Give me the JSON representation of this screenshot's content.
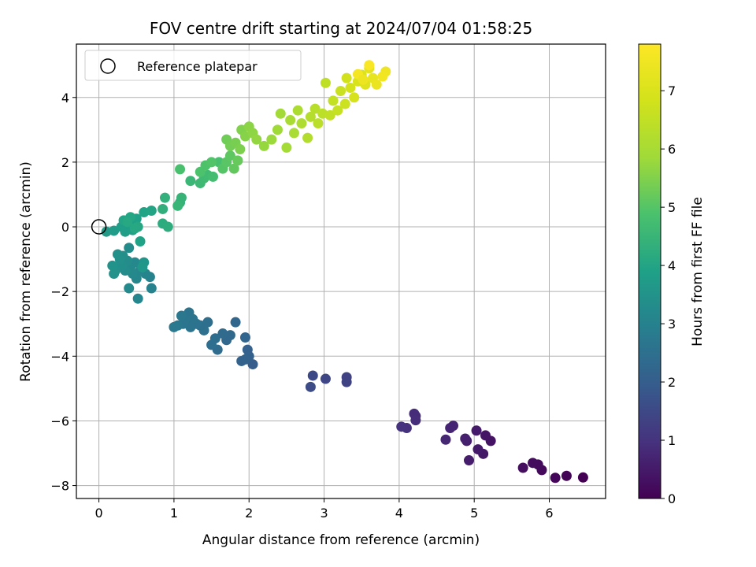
{
  "chart_data": {
    "type": "scatter",
    "title": "FOV centre drift starting at 2024/07/04 01:58:25",
    "xlabel": "Angular distance from reference (arcmin)",
    "ylabel": "Rotation from reference (arcmin)",
    "xlim": [
      -0.3,
      6.75
    ],
    "ylim": [
      -8.4,
      5.65
    ],
    "xticks": [
      0,
      1,
      2,
      3,
      4,
      5,
      6
    ],
    "yticks": [
      -8,
      -6,
      -4,
      -2,
      0,
      2,
      4
    ],
    "grid": true,
    "colormap": "viridis",
    "colorbar": {
      "label": "Hours from first FF file",
      "range": [
        0,
        7.8
      ],
      "ticks": [
        0,
        1,
        2,
        3,
        4,
        5,
        6,
        7
      ]
    },
    "legend": {
      "placement": "top-left",
      "entries": [
        {
          "label": "Reference platepar",
          "marker": "open-circle",
          "x": 0,
          "y": 0
        }
      ]
    },
    "points": [
      {
        "x": 6.45,
        "y": -7.75,
        "c": 0.0
      },
      {
        "x": 6.23,
        "y": -7.7,
        "c": 0.05
      },
      {
        "x": 6.08,
        "y": -7.76,
        "c": 0.1
      },
      {
        "x": 5.9,
        "y": -7.52,
        "c": 0.15
      },
      {
        "x": 5.85,
        "y": -7.35,
        "c": 0.2
      },
      {
        "x": 5.78,
        "y": -7.3,
        "c": 0.22
      },
      {
        "x": 5.65,
        "y": -7.45,
        "c": 0.25
      },
      {
        "x": 5.22,
        "y": -6.62,
        "c": 0.35
      },
      {
        "x": 5.15,
        "y": -6.45,
        "c": 0.4
      },
      {
        "x": 5.12,
        "y": -7.02,
        "c": 0.45
      },
      {
        "x": 5.05,
        "y": -6.88,
        "c": 0.48
      },
      {
        "x": 5.03,
        "y": -6.3,
        "c": 0.5
      },
      {
        "x": 4.93,
        "y": -7.22,
        "c": 0.55
      },
      {
        "x": 4.9,
        "y": -6.62,
        "c": 0.6
      },
      {
        "x": 4.88,
        "y": -6.55,
        "c": 0.62
      },
      {
        "x": 4.72,
        "y": -6.15,
        "c": 0.7
      },
      {
        "x": 4.68,
        "y": -6.22,
        "c": 0.72
      },
      {
        "x": 4.62,
        "y": -6.58,
        "c": 0.75
      },
      {
        "x": 4.22,
        "y": -5.85,
        "c": 0.85
      },
      {
        "x": 4.2,
        "y": -5.78,
        "c": 0.87
      },
      {
        "x": 4.22,
        "y": -5.98,
        "c": 0.9
      },
      {
        "x": 4.1,
        "y": -6.22,
        "c": 0.95
      },
      {
        "x": 4.03,
        "y": -6.18,
        "c": 1.0
      },
      {
        "x": 3.3,
        "y": -4.65,
        "c": 1.35
      },
      {
        "x": 3.3,
        "y": -4.8,
        "c": 1.38
      },
      {
        "x": 3.02,
        "y": -4.7,
        "c": 1.45
      },
      {
        "x": 2.85,
        "y": -4.6,
        "c": 1.5
      },
      {
        "x": 2.82,
        "y": -4.95,
        "c": 1.55
      },
      {
        "x": 2.05,
        "y": -4.25,
        "c": 2.0
      },
      {
        "x": 2.0,
        "y": -4.0,
        "c": 2.05
      },
      {
        "x": 1.98,
        "y": -3.8,
        "c": 2.1
      },
      {
        "x": 1.95,
        "y": -4.1,
        "c": 2.12
      },
      {
        "x": 1.9,
        "y": -4.15,
        "c": 2.15
      },
      {
        "x": 1.95,
        "y": -3.42,
        "c": 2.2
      },
      {
        "x": 1.82,
        "y": -2.95,
        "c": 2.25
      },
      {
        "x": 1.75,
        "y": -3.35,
        "c": 2.3
      },
      {
        "x": 1.7,
        "y": -3.5,
        "c": 2.32
      },
      {
        "x": 1.65,
        "y": -3.3,
        "c": 2.35
      },
      {
        "x": 1.58,
        "y": -3.8,
        "c": 2.4
      },
      {
        "x": 1.55,
        "y": -3.45,
        "c": 2.42
      },
      {
        "x": 1.5,
        "y": -3.65,
        "c": 2.45
      },
      {
        "x": 1.45,
        "y": -2.95,
        "c": 2.48
      },
      {
        "x": 1.4,
        "y": -3.2,
        "c": 2.5
      },
      {
        "x": 1.35,
        "y": -3.05,
        "c": 2.52
      },
      {
        "x": 1.3,
        "y": -3.0,
        "c": 2.55
      },
      {
        "x": 1.25,
        "y": -2.85,
        "c": 2.58
      },
      {
        "x": 1.22,
        "y": -3.1,
        "c": 2.6
      },
      {
        "x": 1.2,
        "y": -2.65,
        "c": 2.62
      },
      {
        "x": 1.15,
        "y": -2.85,
        "c": 2.65
      },
      {
        "x": 1.12,
        "y": -3.0,
        "c": 2.68
      },
      {
        "x": 1.1,
        "y": -2.75,
        "c": 2.7
      },
      {
        "x": 1.05,
        "y": -3.05,
        "c": 2.72
      },
      {
        "x": 1.0,
        "y": -3.1,
        "c": 2.75
      },
      {
        "x": 0.7,
        "y": -1.9,
        "c": 3.0
      },
      {
        "x": 0.68,
        "y": -1.55,
        "c": 3.05
      },
      {
        "x": 0.62,
        "y": -1.45,
        "c": 3.08
      },
      {
        "x": 0.55,
        "y": -1.35,
        "c": 3.1
      },
      {
        "x": 0.52,
        "y": -2.22,
        "c": 3.12
      },
      {
        "x": 0.5,
        "y": -1.6,
        "c": 3.15
      },
      {
        "x": 0.48,
        "y": -1.1,
        "c": 3.18
      },
      {
        "x": 0.45,
        "y": -1.45,
        "c": 3.2
      },
      {
        "x": 0.42,
        "y": -1.25,
        "c": 3.22
      },
      {
        "x": 0.4,
        "y": -1.9,
        "c": 3.25
      },
      {
        "x": 0.4,
        "y": -0.65,
        "c": 3.28
      },
      {
        "x": 0.38,
        "y": -1.05,
        "c": 3.3
      },
      {
        "x": 0.35,
        "y": -1.35,
        "c": 3.32
      },
      {
        "x": 0.32,
        "y": -0.9,
        "c": 3.35
      },
      {
        "x": 0.3,
        "y": -1.2,
        "c": 3.38
      },
      {
        "x": 0.28,
        "y": -1.0,
        "c": 3.4
      },
      {
        "x": 0.25,
        "y": -0.85,
        "c": 3.42
      },
      {
        "x": 0.22,
        "y": -1.35,
        "c": 3.45
      },
      {
        "x": 0.2,
        "y": -1.45,
        "c": 3.48
      },
      {
        "x": 0.18,
        "y": -1.2,
        "c": 3.5
      },
      {
        "x": 0.6,
        "y": -1.1,
        "c": 3.55
      },
      {
        "x": 0.58,
        "y": -1.25,
        "c": 3.6
      },
      {
        "x": 0.1,
        "y": -0.15,
        "c": 3.7
      },
      {
        "x": 0.2,
        "y": -0.12,
        "c": 3.75
      },
      {
        "x": 0.3,
        "y": 0.0,
        "c": 3.8
      },
      {
        "x": 0.35,
        "y": -0.15,
        "c": 3.82
      },
      {
        "x": 0.4,
        "y": 0.1,
        "c": 3.85
      },
      {
        "x": 0.45,
        "y": -0.1,
        "c": 3.88
      },
      {
        "x": 0.5,
        "y": 0.25,
        "c": 3.9
      },
      {
        "x": 0.55,
        "y": -0.45,
        "c": 3.92
      },
      {
        "x": 0.6,
        "y": 0.45,
        "c": 3.95
      },
      {
        "x": 0.7,
        "y": 0.5,
        "c": 3.98
      },
      {
        "x": 0.33,
        "y": 0.2,
        "c": 4.0
      },
      {
        "x": 0.42,
        "y": 0.3,
        "c": 4.02
      },
      {
        "x": 0.52,
        "y": 0.0,
        "c": 4.05
      },
      {
        "x": 0.38,
        "y": 0.15,
        "c": 4.08
      },
      {
        "x": 0.48,
        "y": -0.05,
        "c": 4.1
      },
      {
        "x": 0.85,
        "y": 0.1,
        "c": 4.2
      },
      {
        "x": 0.92,
        "y": 0.0,
        "c": 4.25
      },
      {
        "x": 0.85,
        "y": 0.55,
        "c": 4.3
      },
      {
        "x": 0.88,
        "y": 0.9,
        "c": 4.35
      },
      {
        "x": 1.08,
        "y": 0.75,
        "c": 4.4
      },
      {
        "x": 1.1,
        "y": 0.9,
        "c": 4.45
      },
      {
        "x": 1.05,
        "y": 0.65,
        "c": 4.5
      },
      {
        "x": 1.22,
        "y": 1.42,
        "c": 4.55
      },
      {
        "x": 1.35,
        "y": 1.35,
        "c": 4.6
      },
      {
        "x": 1.4,
        "y": 1.5,
        "c": 4.65
      },
      {
        "x": 1.45,
        "y": 1.6,
        "c": 4.7
      },
      {
        "x": 1.52,
        "y": 1.55,
        "c": 4.75
      },
      {
        "x": 1.6,
        "y": 2.0,
        "c": 4.8
      },
      {
        "x": 1.08,
        "y": 1.78,
        "c": 4.85
      },
      {
        "x": 1.35,
        "y": 1.7,
        "c": 4.9
      },
      {
        "x": 1.42,
        "y": 1.9,
        "c": 4.92
      },
      {
        "x": 1.5,
        "y": 2.0,
        "c": 4.95
      },
      {
        "x": 1.65,
        "y": 1.8,
        "c": 5.0
      },
      {
        "x": 1.7,
        "y": 2.0,
        "c": 5.05
      },
      {
        "x": 1.75,
        "y": 2.2,
        "c": 5.1
      },
      {
        "x": 1.8,
        "y": 1.8,
        "c": 5.15
      },
      {
        "x": 1.85,
        "y": 2.05,
        "c": 5.2
      },
      {
        "x": 1.7,
        "y": 2.7,
        "c": 5.3
      },
      {
        "x": 1.75,
        "y": 2.5,
        "c": 5.35
      },
      {
        "x": 1.82,
        "y": 2.6,
        "c": 5.4
      },
      {
        "x": 1.88,
        "y": 2.4,
        "c": 5.45
      },
      {
        "x": 1.9,
        "y": 3.0,
        "c": 5.5
      },
      {
        "x": 1.95,
        "y": 2.8,
        "c": 5.55
      },
      {
        "x": 2.0,
        "y": 3.1,
        "c": 5.6
      },
      {
        "x": 2.05,
        "y": 2.9,
        "c": 5.65
      },
      {
        "x": 2.1,
        "y": 2.7,
        "c": 5.7
      },
      {
        "x": 2.2,
        "y": 2.5,
        "c": 5.75
      },
      {
        "x": 2.3,
        "y": 2.7,
        "c": 5.8
      },
      {
        "x": 2.38,
        "y": 3.0,
        "c": 5.85
      },
      {
        "x": 2.42,
        "y": 3.5,
        "c": 5.9
      },
      {
        "x": 2.5,
        "y": 2.45,
        "c": 5.95
      },
      {
        "x": 2.55,
        "y": 3.3,
        "c": 6.0
      },
      {
        "x": 2.6,
        "y": 2.9,
        "c": 6.05
      },
      {
        "x": 2.65,
        "y": 3.6,
        "c": 6.1
      },
      {
        "x": 2.7,
        "y": 3.2,
        "c": 6.15
      },
      {
        "x": 2.78,
        "y": 2.75,
        "c": 6.2
      },
      {
        "x": 2.82,
        "y": 3.4,
        "c": 6.25
      },
      {
        "x": 2.88,
        "y": 3.65,
        "c": 6.3
      },
      {
        "x": 2.92,
        "y": 3.2,
        "c": 6.35
      },
      {
        "x": 2.98,
        "y": 3.5,
        "c": 6.4
      },
      {
        "x": 3.02,
        "y": 4.45,
        "c": 6.45
      },
      {
        "x": 3.08,
        "y": 3.45,
        "c": 6.5
      },
      {
        "x": 3.12,
        "y": 3.9,
        "c": 6.55
      },
      {
        "x": 3.18,
        "y": 3.6,
        "c": 6.6
      },
      {
        "x": 3.22,
        "y": 4.2,
        "c": 6.65
      },
      {
        "x": 3.28,
        "y": 3.8,
        "c": 6.7
      },
      {
        "x": 3.3,
        "y": 4.6,
        "c": 6.8
      },
      {
        "x": 3.35,
        "y": 4.3,
        "c": 6.85
      },
      {
        "x": 3.4,
        "y": 4.0,
        "c": 6.9
      },
      {
        "x": 3.45,
        "y": 4.5,
        "c": 6.95
      },
      {
        "x": 3.5,
        "y": 4.7,
        "c": 7.0
      },
      {
        "x": 3.55,
        "y": 4.4,
        "c": 7.1
      },
      {
        "x": 3.6,
        "y": 4.9,
        "c": 7.2
      },
      {
        "x": 3.65,
        "y": 4.6,
        "c": 7.3
      },
      {
        "x": 3.7,
        "y": 4.4,
        "c": 7.4
      },
      {
        "x": 3.82,
        "y": 4.8,
        "c": 7.5
      },
      {
        "x": 3.78,
        "y": 4.65,
        "c": 7.55
      },
      {
        "x": 3.6,
        "y": 5.0,
        "c": 7.7
      },
      {
        "x": 3.45,
        "y": 4.72,
        "c": 7.6
      },
      {
        "x": 3.52,
        "y": 4.55,
        "c": 7.45
      }
    ]
  }
}
